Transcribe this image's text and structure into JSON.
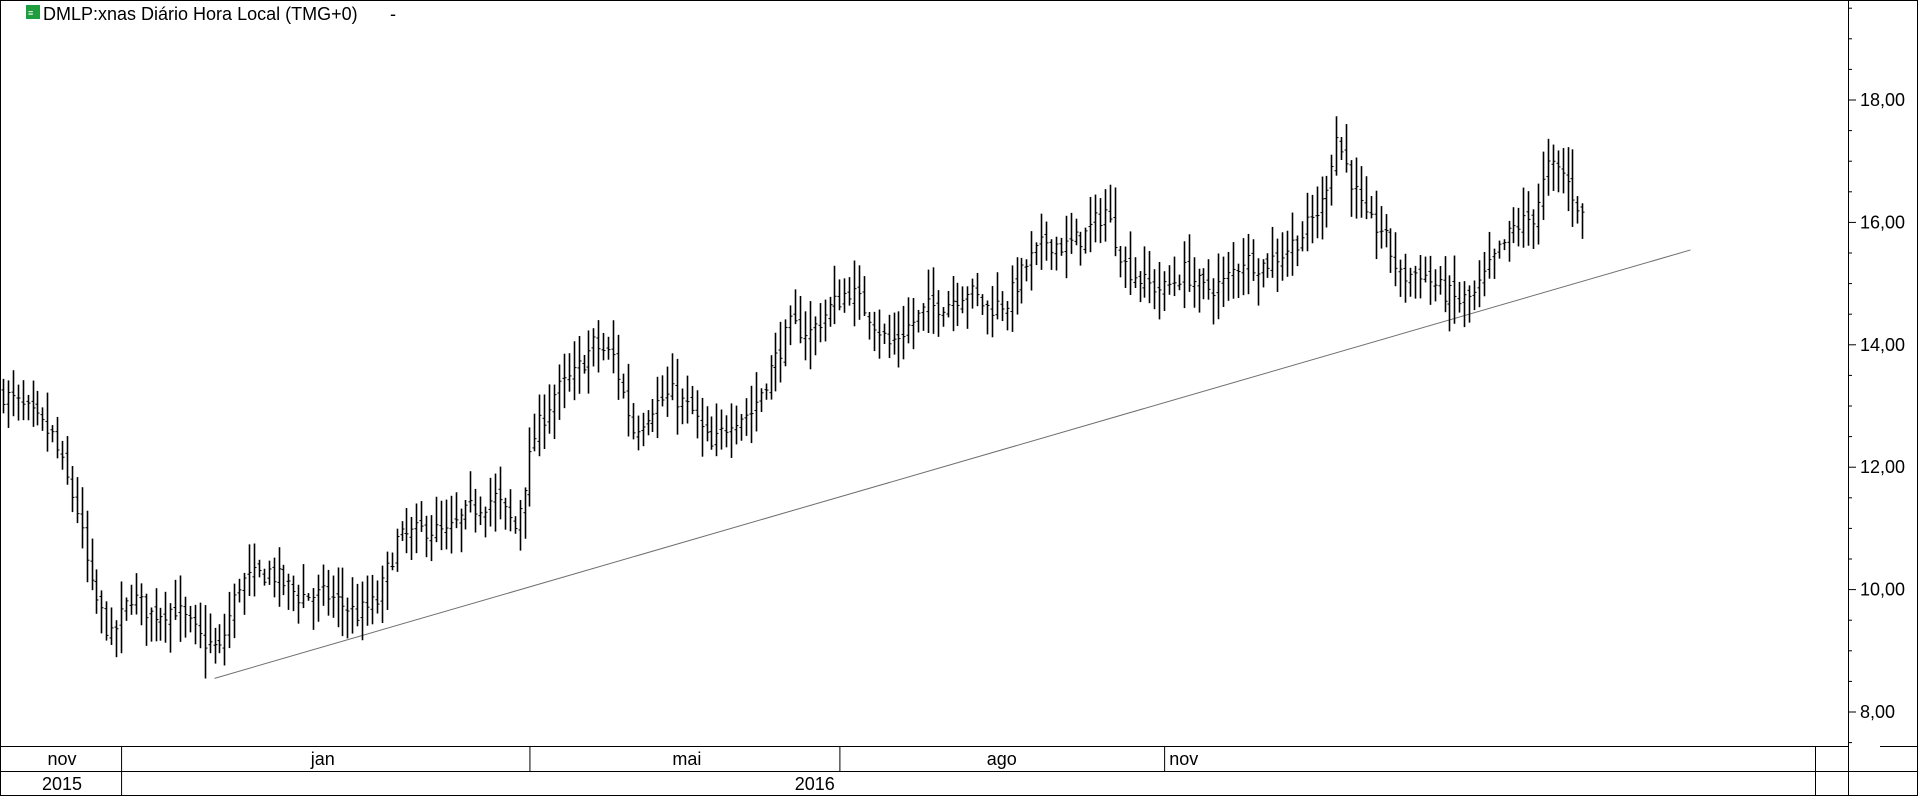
{
  "title": "DMLP:xnas Diário Hora Local (TMG+0)",
  "title_suffix": "-",
  "icon": "chart-settings-icon",
  "colors": {
    "background": "#ffffff",
    "bars": "#000000",
    "trendline": "#6e6e6e",
    "icon_fill": "#1e9e3e",
    "border": "#000000"
  },
  "chart_data": {
    "type": "ohlc-bar",
    "title": "DMLP:xnas Diário Hora Local (TMG+0)",
    "xlabel": "",
    "ylabel": "",
    "ylim": [
      7.3,
      19.6
    ],
    "y_ticks": [
      "8,00",
      "10,00",
      "12,00",
      "14,00",
      "16,00",
      "18,00"
    ],
    "y_tick_values": [
      8,
      10,
      12,
      14,
      16,
      18
    ],
    "grid": false,
    "month_labels": [
      {
        "label": "nov"
      },
      {
        "label": "jan"
      },
      {
        "label": "mai"
      },
      {
        "label": "ago"
      },
      {
        "label": "nov"
      }
    ],
    "year_labels": [
      {
        "label": "2015"
      },
      {
        "label": "2016"
      }
    ],
    "anchors": [
      [
        0,
        13.2
      ],
      [
        5,
        12.9
      ],
      [
        10,
        12.5
      ],
      [
        15,
        11.3
      ],
      [
        18,
        10.0
      ],
      [
        22,
        9.2
      ],
      [
        26,
        9.9
      ],
      [
        30,
        9.6
      ],
      [
        35,
        9.7
      ],
      [
        40,
        9.2
      ],
      [
        44,
        9.0
      ],
      [
        48,
        10.1
      ],
      [
        54,
        10.3
      ],
      [
        60,
        9.9
      ],
      [
        66,
        9.9
      ],
      [
        72,
        9.6
      ],
      [
        76,
        9.8
      ],
      [
        80,
        10.8
      ],
      [
        86,
        11.0
      ],
      [
        90,
        10.9
      ],
      [
        95,
        11.3
      ],
      [
        100,
        11.5
      ],
      [
        104,
        11.0
      ],
      [
        108,
        12.5
      ],
      [
        112,
        13.2
      ],
      [
        116,
        13.5
      ],
      [
        120,
        14.0
      ],
      [
        124,
        13.8
      ],
      [
        128,
        12.6
      ],
      [
        132,
        13.0
      ],
      [
        136,
        13.2
      ],
      [
        140,
        12.9
      ],
      [
        144,
        12.3
      ],
      [
        148,
        12.8
      ],
      [
        152,
        12.9
      ],
      [
        156,
        13.6
      ],
      [
        160,
        14.3
      ],
      [
        164,
        14.2
      ],
      [
        168,
        14.6
      ],
      [
        172,
        14.9
      ],
      [
        176,
        14.5
      ],
      [
        180,
        14.0
      ],
      [
        184,
        14.3
      ],
      [
        188,
        14.6
      ],
      [
        192,
        14.7
      ],
      [
        196,
        14.9
      ],
      [
        200,
        14.6
      ],
      [
        204,
        14.7
      ],
      [
        208,
        15.3
      ],
      [
        212,
        15.7
      ],
      [
        216,
        15.6
      ],
      [
        220,
        15.8
      ],
      [
        224,
        16.2
      ],
      [
        228,
        15.3
      ],
      [
        232,
        15.0
      ],
      [
        236,
        14.9
      ],
      [
        240,
        15.2
      ],
      [
        244,
        14.9
      ],
      [
        248,
        15.0
      ],
      [
        252,
        15.4
      ],
      [
        256,
        15.3
      ],
      [
        260,
        15.5
      ],
      [
        264,
        15.8
      ],
      [
        268,
        16.3
      ],
      [
        271,
        17.4
      ],
      [
        274,
        16.7
      ],
      [
        277,
        16.0
      ],
      [
        280,
        15.9
      ],
      [
        284,
        15.1
      ],
      [
        288,
        15.2
      ],
      [
        292,
        14.9
      ],
      [
        296,
        14.7
      ],
      [
        299,
        14.8
      ],
      [
        303,
        15.4
      ],
      [
        307,
        15.9
      ],
      [
        311,
        16.1
      ],
      [
        314,
        16.9
      ],
      [
        317,
        16.8
      ],
      [
        320,
        16.3
      ],
      [
        321,
        16.1
      ]
    ],
    "trendline": {
      "start_bar": 43,
      "start_value": 8.55,
      "end_bar": 343,
      "end_value": 15.55
    },
    "bar_count": 322
  }
}
